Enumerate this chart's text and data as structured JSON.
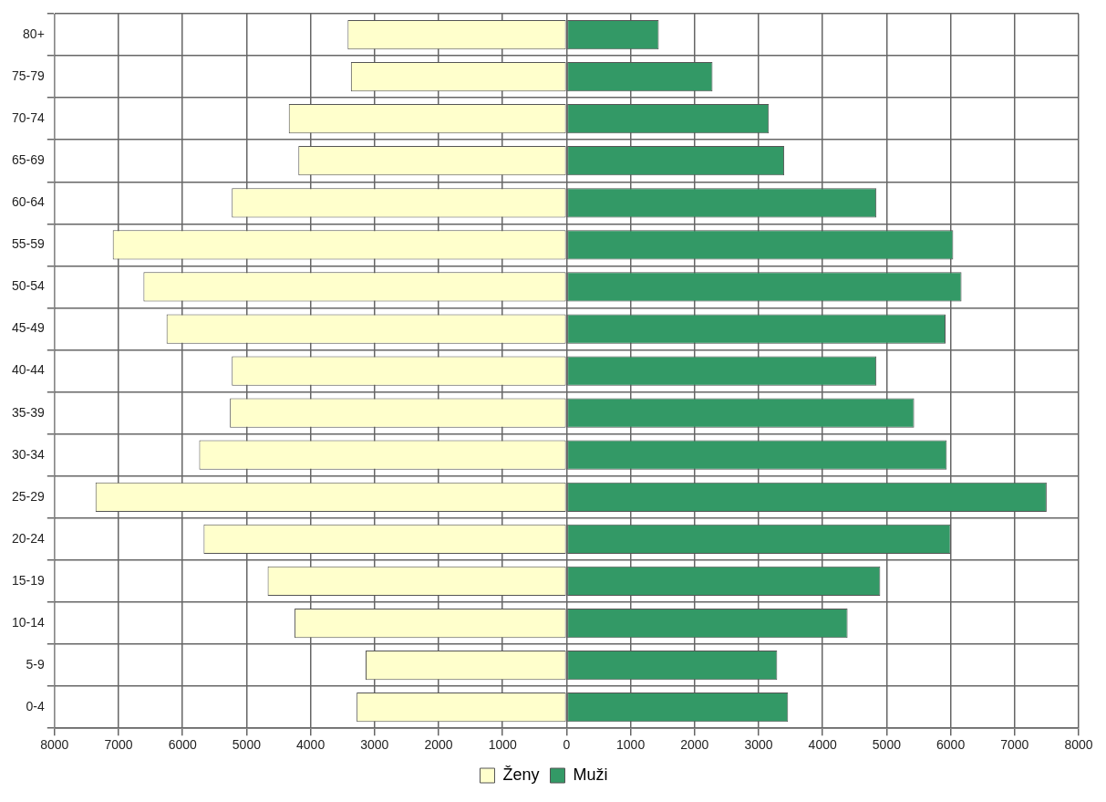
{
  "chart_data": {
    "type": "bar",
    "orientation": "horizontal",
    "stacked": true,
    "categories": [
      "80+",
      "75-79",
      "70-74",
      "65-69",
      "60-64",
      "55-59",
      "50-54",
      "45-49",
      "40-44",
      "35-39",
      "30-34",
      "25-29",
      "20-24",
      "15-19",
      "10-14",
      "5-9",
      "0-4"
    ],
    "series": [
      {
        "name": "Ženy",
        "color": "#ffffcc",
        "values": [
          -3420,
          -3370,
          -4340,
          -4190,
          -5230,
          -7090,
          -6610,
          -6250,
          -5230,
          -5260,
          -5740,
          -7360,
          -5670,
          -4670,
          -4250,
          -3140,
          -3280
        ]
      },
      {
        "name": "Muži",
        "color": "#339966",
        "values": [
          1440,
          2280,
          3160,
          3400,
          4840,
          6040,
          6170,
          5920,
          4840,
          5430,
          5940,
          7500,
          6000,
          4900,
          4390,
          3290,
          3460
        ]
      }
    ],
    "xlim": [
      -8000,
      8000
    ],
    "xticks": [
      {
        "value": -8000,
        "label": "8000"
      },
      {
        "value": -7000,
        "label": "7000"
      },
      {
        "value": -6000,
        "label": "6000"
      },
      {
        "value": -5000,
        "label": "5000"
      },
      {
        "value": -4000,
        "label": "4000"
      },
      {
        "value": -3000,
        "label": "3000"
      },
      {
        "value": -2000,
        "label": "2000"
      },
      {
        "value": -1000,
        "label": "1000"
      },
      0,
      1000,
      2000,
      3000,
      4000,
      5000,
      6000,
      7000,
      8000
    ],
    "grid": true,
    "legend": "bottom"
  }
}
